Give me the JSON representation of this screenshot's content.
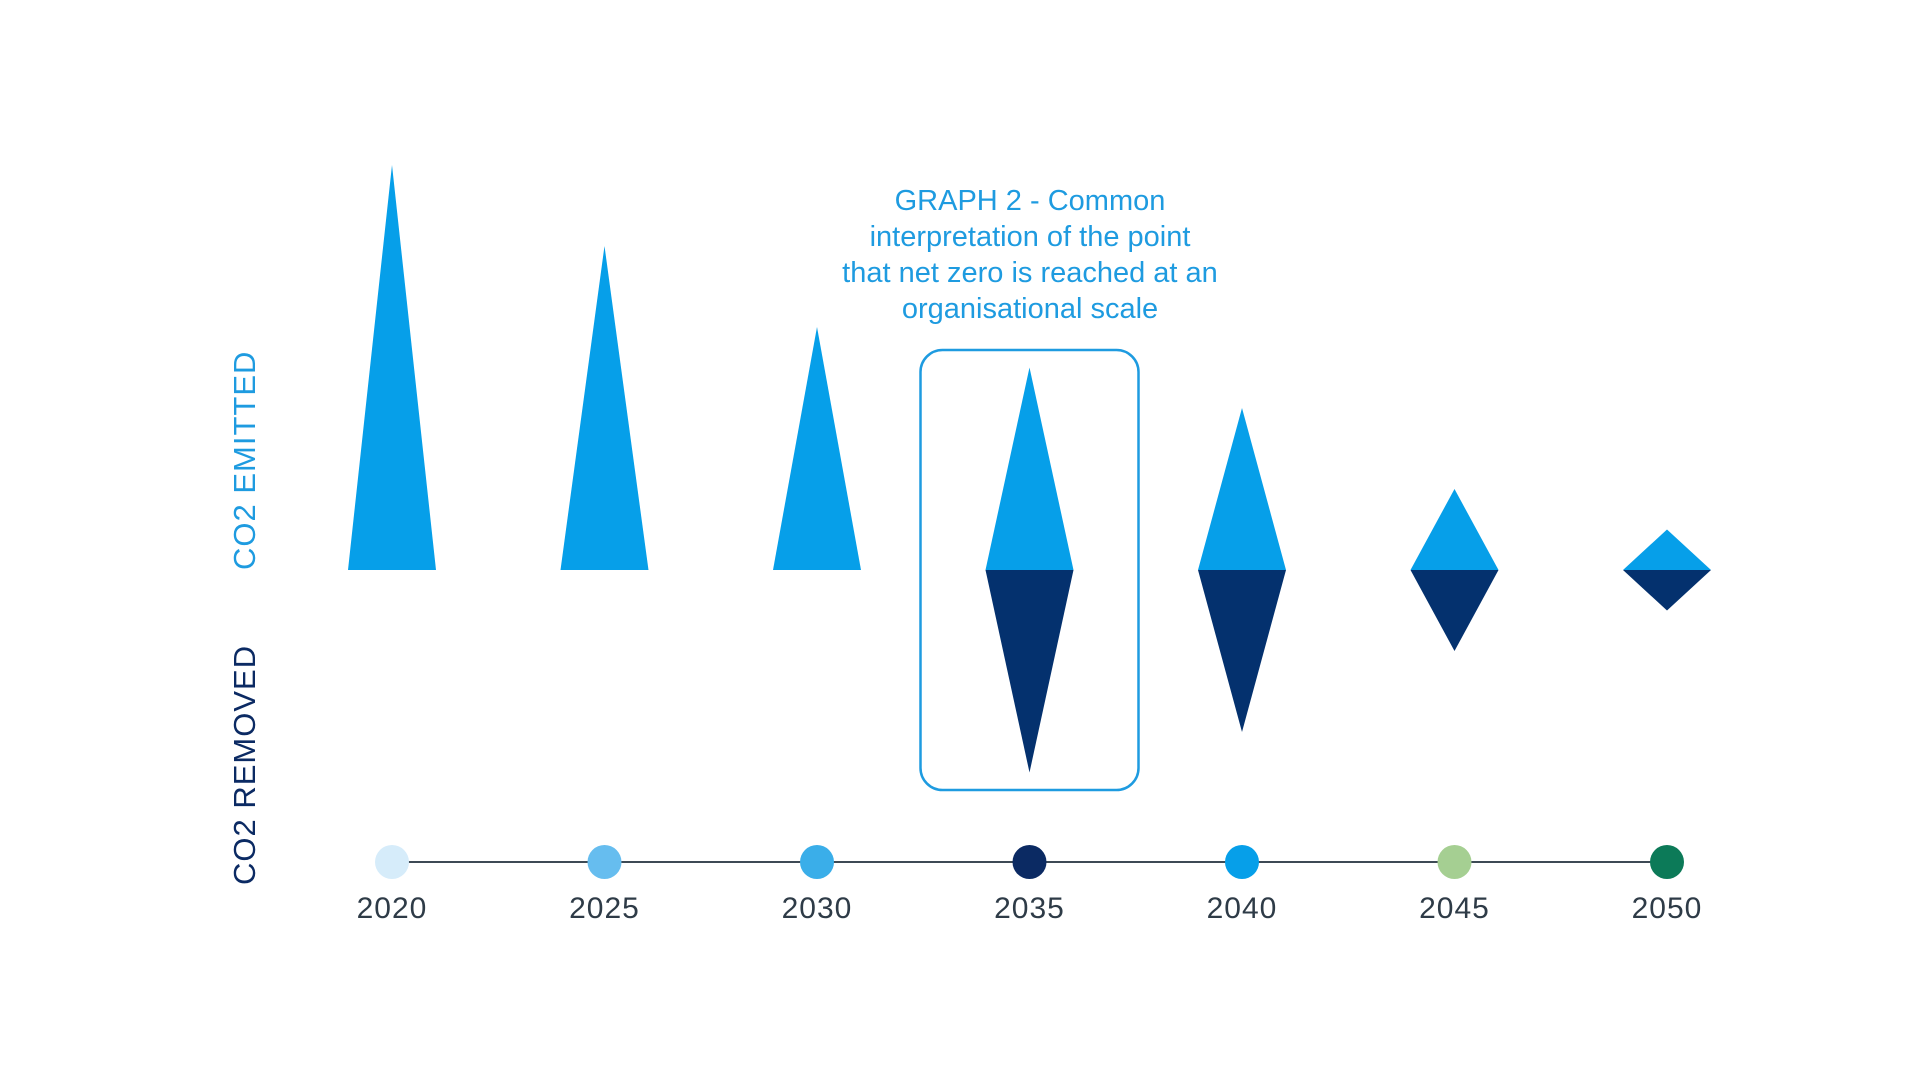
{
  "chart_data": {
    "type": "bar",
    "title": "GRAPH 2 - Common interpretation of the point that net zero is reached at an organisational scale",
    "title_lines": [
      "GRAPH 2 - Common",
      "interpretation of the point",
      "that net zero is reached at an",
      "organisational scale"
    ],
    "ylabel_positive": "CO2 EMITTED",
    "ylabel_negative": "CO2 REMOVED",
    "categories": [
      "2020",
      "2025",
      "2030",
      "2035",
      "2040",
      "2045",
      "2050"
    ],
    "series": [
      {
        "name": "CO2 EMITTED",
        "values": [
          10,
          8,
          6,
          5,
          4,
          2,
          1
        ],
        "color": "#069fe9"
      },
      {
        "name": "CO2 REMOVED",
        "values": [
          0,
          0,
          0,
          5,
          4,
          2,
          1
        ],
        "color": "#04316e"
      }
    ],
    "ylim": [
      -5,
      10
    ],
    "highlighted_category": "2035",
    "timeline_dot_colors": [
      "#d6ecfa",
      "#66bdef",
      "#3aaee9",
      "#0b2a63",
      "#069fe9",
      "#a5cf92",
      "#0c7a58"
    ],
    "colors": {
      "emitted": "#069fe9",
      "removed": "#04316e",
      "emitted_label": "#1e9be0",
      "removed_label": "#0b2a63",
      "highlight_box": "#1e9be0",
      "timeline_line": "#3d4a55"
    },
    "grid": false
  }
}
